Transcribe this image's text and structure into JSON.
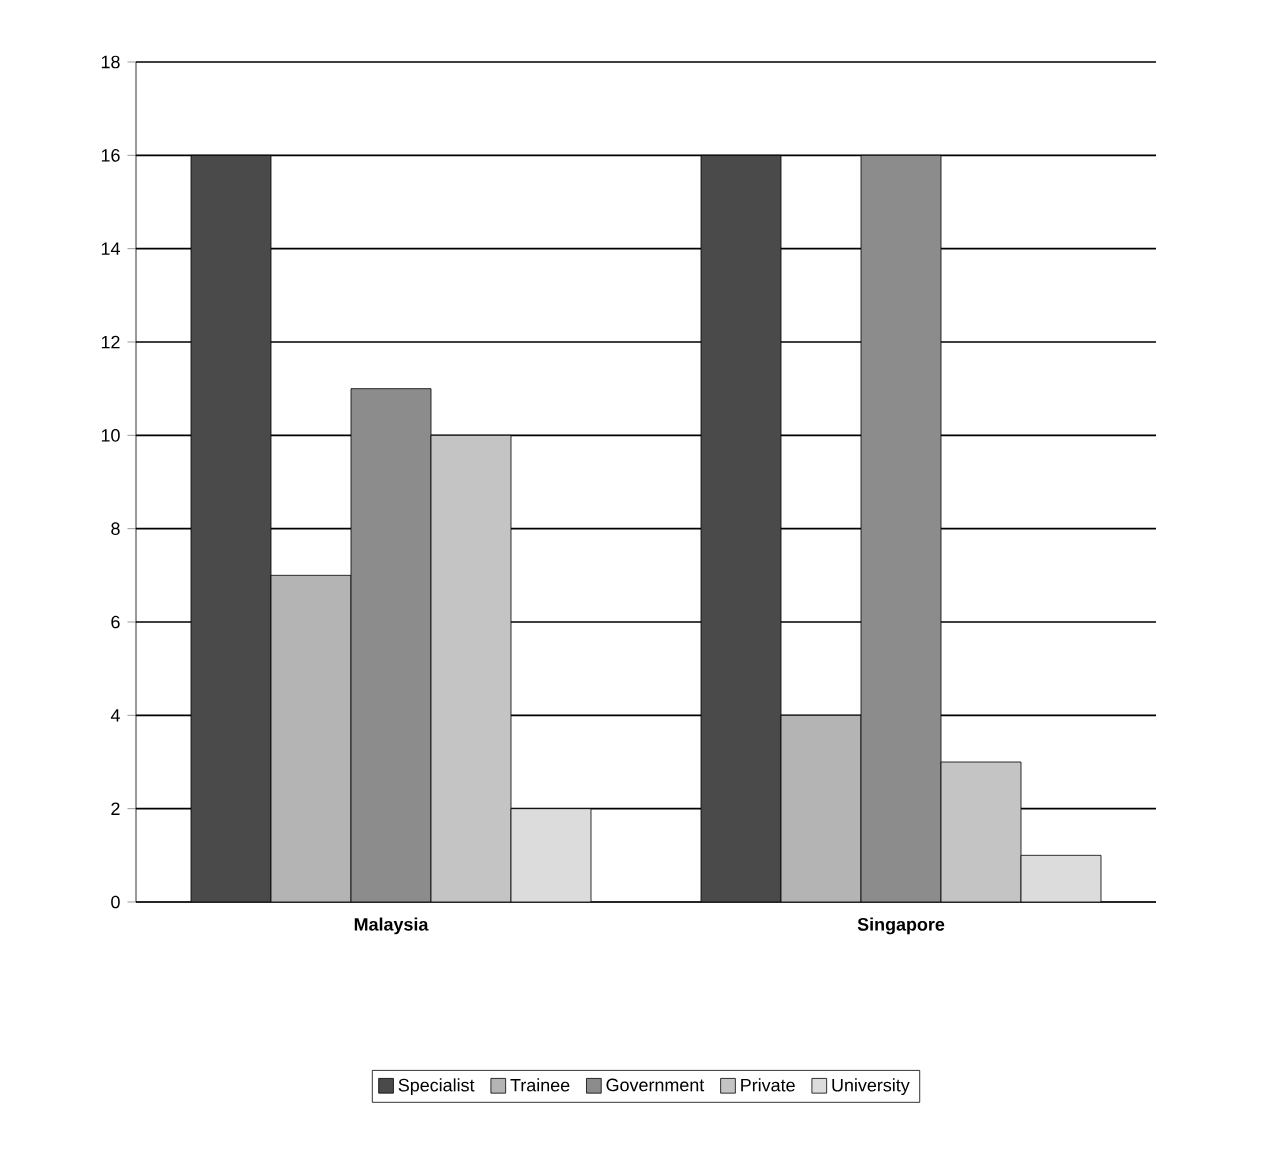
{
  "chart_data": {
    "type": "bar",
    "categories": [
      "Malaysia",
      "Singapore"
    ],
    "series": [
      {
        "name": "Specialist",
        "color": "#4a4a4a",
        "values": [
          16,
          16
        ]
      },
      {
        "name": "Trainee",
        "color": "#b4b4b4",
        "values": [
          7,
          4
        ]
      },
      {
        "name": "Government",
        "color": "#8c8c8c",
        "values": [
          11,
          16
        ]
      },
      {
        "name": "Private",
        "color": "#c4c4c4",
        "values": [
          10,
          3
        ]
      },
      {
        "name": "University",
        "color": "#dcdcdc",
        "values": [
          2,
          1
        ]
      }
    ],
    "ylim": [
      0,
      18
    ],
    "yticks": [
      0,
      2,
      4,
      6,
      8,
      10,
      12,
      14,
      16,
      18
    ],
    "grid": "y",
    "legend": "bottom"
  }
}
